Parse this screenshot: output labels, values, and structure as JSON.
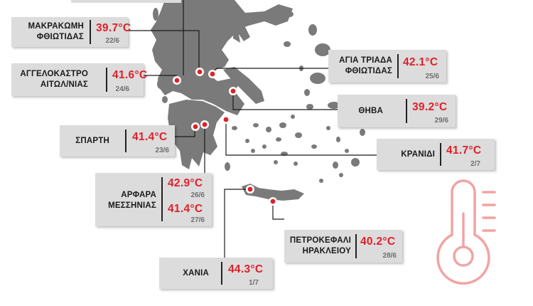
{
  "colors": {
    "land": "#7a7a7a",
    "card": "#dcdcdc",
    "temperature": "#e0202a",
    "marker": "#e0202a",
    "thermometer": "#f3a3a3"
  },
  "icons": [
    "thermometer-icon"
  ],
  "locations": [
    {
      "id": "makrakomi",
      "name": [
        "ΜΑΚΡΑΚΩΜΗ",
        "ΦΘΙΩΤΙΔΑΣ"
      ],
      "temp": "39.7°C",
      "date": "22/6"
    },
    {
      "id": "agia-triada",
      "name": [
        "ΑΓΙΑ ΤΡΙΑΔΑ",
        "ΦΘΙΩΤΙΔΑΣ"
      ],
      "temp": "42.1°C",
      "date": "25/6"
    },
    {
      "id": "aggelokastro",
      "name": [
        "ΑΓΓΕΛΟΚΑΣΤΡΟ",
        "ΑΙΤΩΛ/ΝΙΑΣ"
      ],
      "temp": "41.6°C",
      "date": "24/6"
    },
    {
      "id": "thiva",
      "name": [
        "ΘΗΒΑ"
      ],
      "temp": "39.2°C",
      "date": "29/6"
    },
    {
      "id": "sparti",
      "name": [
        "ΣΠΑΡΤΗ"
      ],
      "temp": "41.4°C",
      "date": "23/6"
    },
    {
      "id": "kranidi",
      "name": [
        "ΚΡΑΝΙΔΙ"
      ],
      "temp": "41.7°C",
      "date": "2/7"
    },
    {
      "id": "arfara",
      "name": [
        "ΑΡΦΑΡΑ",
        "ΜΕΣΣΗΝΙΑΣ"
      ],
      "readings": [
        {
          "temp": "42.9°C",
          "date": "26/6"
        },
        {
          "temp": "41.4°C",
          "date": "27/6"
        }
      ]
    },
    {
      "id": "petrokefali",
      "name": [
        "ΠΕΤΡΟΚΕΦΑΛΙ",
        "ΗΡΑΚΛΕΙΟΥ"
      ],
      "temp": "40.2°C",
      "date": "28/6"
    },
    {
      "id": "chania",
      "name": [
        "ΧΑΝΙΑ"
      ],
      "temp": "44.3°C",
      "date": "1/7"
    }
  ]
}
